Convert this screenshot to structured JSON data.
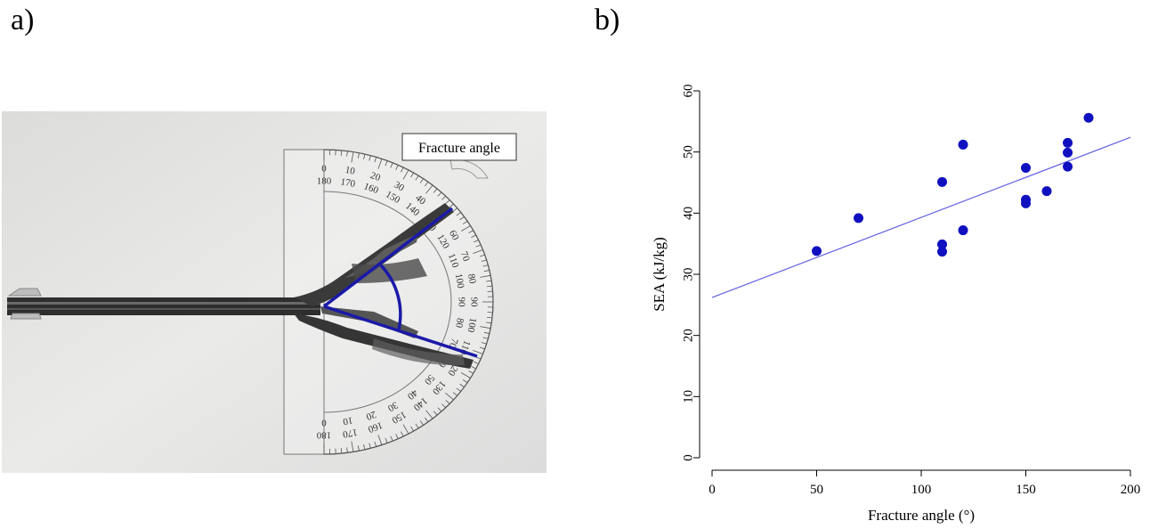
{
  "panels": {
    "a_label": "a)",
    "b_label": "b)"
  },
  "photo": {
    "annotation": "Fracture angle",
    "line_color": "#1a1aa8"
  },
  "protractor": {
    "outer_numbers": [
      "0",
      "10",
      "20",
      "30",
      "40",
      "50",
      "60",
      "70",
      "80",
      "90",
      "100",
      "110",
      "120",
      "130",
      "140",
      "150",
      "160",
      "170",
      "180"
    ],
    "inner_numbers": [
      "180",
      "170",
      "160",
      "150",
      "140",
      "130",
      "120",
      "110",
      "100",
      "90",
      "80",
      "70",
      "60",
      "50",
      "40",
      "30",
      "20",
      "10",
      "0"
    ]
  },
  "chart_data": {
    "type": "scatter",
    "title": "",
    "xlabel": "Fracture angle (°)",
    "ylabel": "SEA (kJ/kg)",
    "xlim": [
      0,
      200
    ],
    "ylim": [
      0,
      60
    ],
    "xticks": [
      0,
      50,
      100,
      150,
      200
    ],
    "yticks": [
      0,
      10,
      20,
      30,
      40,
      50,
      60
    ],
    "point_color": "#1010c0",
    "line_color": "#6060e0",
    "points": [
      {
        "x": 50,
        "y": 33.8
      },
      {
        "x": 70,
        "y": 39.2
      },
      {
        "x": 110,
        "y": 45.1
      },
      {
        "x": 110,
        "y": 34.9
      },
      {
        "x": 110,
        "y": 33.7
      },
      {
        "x": 120,
        "y": 51.2
      },
      {
        "x": 120,
        "y": 37.2
      },
      {
        "x": 150,
        "y": 47.4
      },
      {
        "x": 150,
        "y": 42.2
      },
      {
        "x": 150,
        "y": 41.6
      },
      {
        "x": 160,
        "y": 43.6
      },
      {
        "x": 170,
        "y": 51.5
      },
      {
        "x": 170,
        "y": 49.9
      },
      {
        "x": 170,
        "y": 47.6
      },
      {
        "x": 180,
        "y": 55.6
      }
    ],
    "fit_line": {
      "intercept": 26.2,
      "slope": 0.131
    }
  }
}
